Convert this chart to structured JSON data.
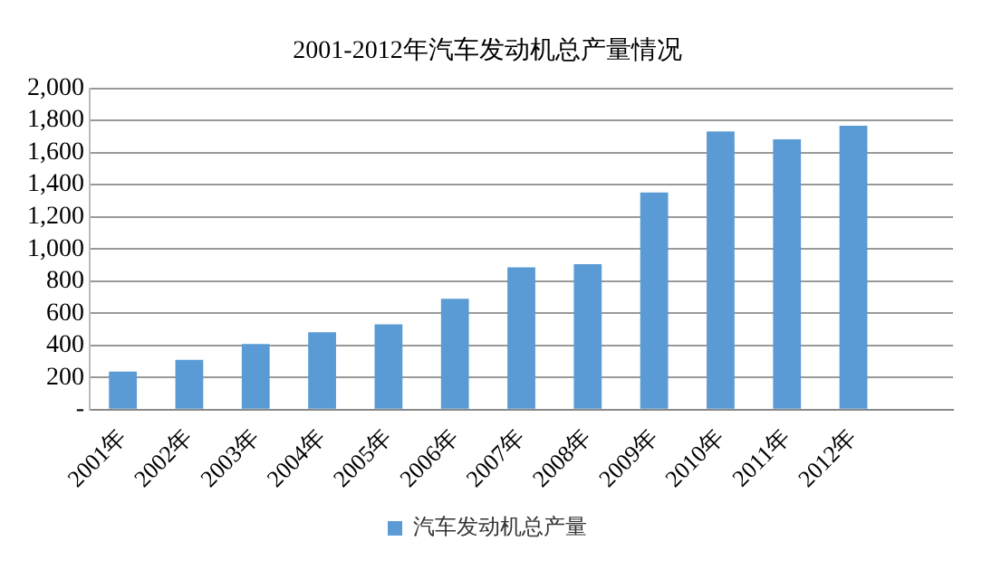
{
  "chart_data": {
    "type": "bar",
    "title": "2001-2012年汽车发动机总产量情况",
    "categories": [
      "2001年",
      "2002年",
      "2003年",
      "2004年",
      "2005年",
      "2006年",
      "2007年",
      "2008年",
      "2009年",
      "2010年",
      "2011年",
      "2012年",
      null
    ],
    "series": [
      {
        "name": "汽车发动机总产量",
        "color": "#5b9bd5",
        "values": [
          237,
          310,
          408,
          482,
          531,
          690,
          886,
          906,
          1351,
          1731,
          1682,
          1767,
          null
        ]
      }
    ],
    "ylim": [
      0,
      2000
    ],
    "yticks": [
      {
        "value": 0,
        "label": "-"
      },
      {
        "value": 200,
        "label": "200"
      },
      {
        "value": 400,
        "label": "400"
      },
      {
        "value": 600,
        "label": "600"
      },
      {
        "value": 800,
        "label": "800"
      },
      {
        "value": 1000,
        "label": "1,000"
      },
      {
        "value": 1200,
        "label": "1,200"
      },
      {
        "value": 1400,
        "label": "1,400"
      },
      {
        "value": 1600,
        "label": "1,600"
      },
      {
        "value": 1800,
        "label": "1,800"
      },
      {
        "value": 2000,
        "label": "2,000"
      }
    ],
    "grid": "y",
    "legend": "bottom"
  }
}
